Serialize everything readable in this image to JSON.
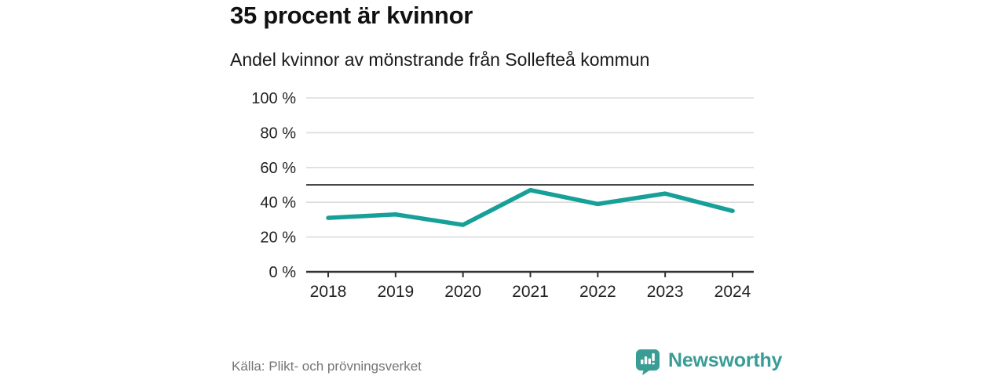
{
  "header": {
    "title": "35 procent är kvinnor",
    "subtitle": "Andel kvinnor av mönstrande från Sollefteå kommun"
  },
  "footer": {
    "source": "Källa: Plikt- och prövningsverket",
    "brand_name": "Newsworthy",
    "brand_icon": "bar-chart-speech-bubble-icon"
  },
  "colors": {
    "line": "#16a098",
    "brand_teal": "#399d96",
    "grid": "#dcdcdc",
    "reference_line": "#4a4a4a",
    "axis": "#333333",
    "tick_text": "#222222",
    "title_text": "#111111",
    "muted_text": "#757575",
    "background": "#ffffff"
  },
  "chart_data": {
    "type": "line",
    "title": "35 procent är kvinnor",
    "subtitle": "Andel kvinnor av mönstrande från Sollefteå kommun",
    "categories": [
      "2018",
      "2019",
      "2020",
      "2021",
      "2022",
      "2023",
      "2024"
    ],
    "values": [
      31,
      33,
      27,
      47,
      39,
      45,
      35
    ],
    "series_name": "Andel kvinnor av mönstrande",
    "unit": "%",
    "xlabel": "",
    "ylabel": "",
    "ylim": [
      0,
      100
    ],
    "yticks": [
      0,
      20,
      40,
      60,
      80,
      100
    ],
    "ytick_suffix": " %",
    "reference_line": 50,
    "grid": true,
    "legend_position": "none"
  }
}
